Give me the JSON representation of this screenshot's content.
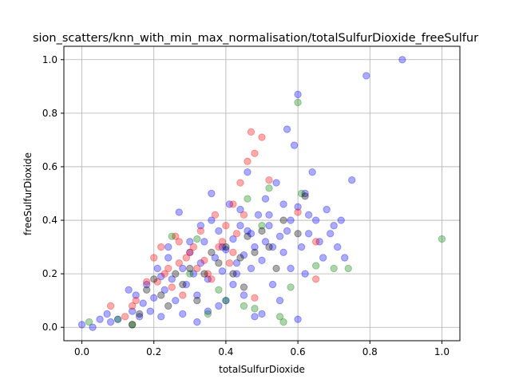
{
  "chart_data": {
    "type": "scatter",
    "title": "sion_scatters/knn_with_min_max_normalisation/totalSulfurDioxide_freeSulfur",
    "xlabel": "totalSulfurDioxide",
    "ylabel": "freeSulfurDioxide",
    "xlim": [
      -0.05,
      1.05
    ],
    "ylim": [
      -0.05,
      1.05
    ],
    "xticks": [
      "0.0",
      "0.2",
      "0.4",
      "0.6",
      "0.8",
      "1.0"
    ],
    "yticks": [
      "0.0",
      "0.2",
      "0.4",
      "0.6",
      "0.8",
      "1.0"
    ],
    "grid": true,
    "series": [
      {
        "color": "#0000ff",
        "points": [
          [
            0.0,
            0.01
          ],
          [
            0.03,
            0.0
          ],
          [
            0.05,
            0.03
          ],
          [
            0.07,
            0.05
          ],
          [
            0.08,
            0.02
          ],
          [
            0.1,
            0.03
          ],
          [
            0.13,
            0.14
          ],
          [
            0.15,
            0.12
          ],
          [
            0.17,
            0.09
          ],
          [
            0.18,
            0.16
          ],
          [
            0.2,
            0.11
          ],
          [
            0.21,
            0.22
          ],
          [
            0.22,
            0.19
          ],
          [
            0.23,
            0.14
          ],
          [
            0.24,
            0.26
          ],
          [
            0.25,
            0.18
          ],
          [
            0.26,
            0.1
          ],
          [
            0.27,
            0.43
          ],
          [
            0.28,
            0.22
          ],
          [
            0.29,
            0.16
          ],
          [
            0.3,
            0.28
          ],
          [
            0.31,
            0.2
          ],
          [
            0.32,
            0.12
          ],
          [
            0.33,
            0.24
          ],
          [
            0.34,
            0.32
          ],
          [
            0.35,
            0.18
          ],
          [
            0.36,
            0.5
          ],
          [
            0.37,
            0.26
          ],
          [
            0.38,
            0.36
          ],
          [
            0.39,
            0.21
          ],
          [
            0.4,
            0.29
          ],
          [
            0.41,
            0.46
          ],
          [
            0.42,
            0.33
          ],
          [
            0.43,
            0.2
          ],
          [
            0.44,
            0.38
          ],
          [
            0.45,
            0.27
          ],
          [
            0.46,
            0.58
          ],
          [
            0.47,
            0.35
          ],
          [
            0.48,
            0.3
          ],
          [
            0.49,
            0.42
          ],
          [
            0.5,
            0.25
          ],
          [
            0.51,
            0.48
          ],
          [
            0.52,
            0.38
          ],
          [
            0.53,
            0.3
          ],
          [
            0.54,
            0.54
          ],
          [
            0.55,
            0.34
          ],
          [
            0.56,
            0.28
          ],
          [
            0.57,
            0.74
          ],
          [
            0.58,
            0.4
          ],
          [
            0.59,
            0.68
          ],
          [
            0.6,
            0.45
          ],
          [
            0.61,
            0.3
          ],
          [
            0.62,
            0.5
          ],
          [
            0.63,
            0.35
          ],
          [
            0.64,
            0.58
          ],
          [
            0.65,
            0.4
          ],
          [
            0.66,
            0.32
          ],
          [
            0.68,
            0.44
          ],
          [
            0.7,
            0.38
          ],
          [
            0.72,
            0.4
          ],
          [
            0.75,
            0.55
          ],
          [
            0.6,
            0.87
          ],
          [
            0.79,
            0.94
          ],
          [
            0.89,
            1.0
          ],
          [
            0.45,
            0.12
          ],
          [
            0.5,
            0.05
          ],
          [
            0.55,
            0.1
          ],
          [
            0.6,
            0.03
          ],
          [
            0.35,
            0.06
          ],
          [
            0.32,
            0.02
          ],
          [
            0.28,
            0.05
          ],
          [
            0.4,
            0.1
          ],
          [
            0.42,
            0.16
          ],
          [
            0.38,
            0.08
          ],
          [
            0.47,
            0.22
          ],
          [
            0.53,
            0.16
          ],
          [
            0.58,
            0.22
          ],
          [
            0.62,
            0.2
          ],
          [
            0.67,
            0.26
          ],
          [
            0.73,
            0.26
          ],
          [
            0.48,
            0.04
          ],
          [
            0.22,
            0.04
          ],
          [
            0.19,
            0.06
          ],
          [
            0.16,
            0.04
          ],
          [
            0.14,
            0.06
          ],
          [
            0.3,
            0.32
          ],
          [
            0.36,
            0.4
          ],
          [
            0.44,
            0.44
          ],
          [
            0.52,
            0.42
          ],
          [
            0.56,
            0.46
          ],
          [
            0.24,
            0.3
          ],
          [
            0.33,
            0.38
          ],
          [
            0.43,
            0.24
          ],
          [
            0.39,
            0.3
          ],
          [
            0.46,
            0.36
          ],
          [
            0.51,
            0.32
          ],
          [
            0.57,
            0.36
          ],
          [
            0.63,
            0.42
          ],
          [
            0.69,
            0.35
          ],
          [
            0.71,
            0.3
          ]
        ]
      },
      {
        "color": "#ff0000",
        "points": [
          [
            0.08,
            0.08
          ],
          [
            0.15,
            0.1
          ],
          [
            0.18,
            0.17
          ],
          [
            0.2,
            0.26
          ],
          [
            0.22,
            0.3
          ],
          [
            0.23,
            0.2
          ],
          [
            0.25,
            0.15
          ],
          [
            0.26,
            0.34
          ],
          [
            0.27,
            0.24
          ],
          [
            0.28,
            0.12
          ],
          [
            0.3,
            0.28
          ],
          [
            0.32,
            0.22
          ],
          [
            0.33,
            0.36
          ],
          [
            0.35,
            0.2
          ],
          [
            0.37,
            0.42
          ],
          [
            0.38,
            0.3
          ],
          [
            0.4,
            0.38
          ],
          [
            0.41,
            0.24
          ],
          [
            0.42,
            0.46
          ],
          [
            0.43,
            0.35
          ],
          [
            0.44,
            0.54
          ],
          [
            0.45,
            0.42
          ],
          [
            0.46,
            0.62
          ],
          [
            0.47,
            0.73
          ],
          [
            0.48,
            0.65
          ],
          [
            0.5,
            0.71
          ],
          [
            0.52,
            0.55
          ],
          [
            0.48,
            0.11
          ],
          [
            0.36,
            0.18
          ],
          [
            0.24,
            0.22
          ],
          [
            0.21,
            0.17
          ],
          [
            0.29,
            0.26
          ],
          [
            0.31,
            0.3
          ],
          [
            0.34,
            0.25
          ],
          [
            0.39,
            0.32
          ],
          [
            0.12,
            0.04
          ],
          [
            0.14,
            0.08
          ],
          [
            0.27,
            0.32
          ],
          [
            0.42,
            0.28
          ],
          [
            0.65,
            0.32
          ],
          [
            0.65,
            0.18
          ],
          [
            0.6,
            0.43
          ]
        ]
      },
      {
        "color": "#008000",
        "points": [
          [
            0.02,
            0.02
          ],
          [
            0.1,
            0.03
          ],
          [
            0.14,
            0.01
          ],
          [
            0.25,
            0.34
          ],
          [
            0.32,
            0.33
          ],
          [
            0.35,
            0.05
          ],
          [
            0.4,
            0.1
          ],
          [
            0.45,
            0.08
          ],
          [
            0.48,
            0.07
          ],
          [
            0.52,
            0.52
          ],
          [
            0.55,
            0.04
          ],
          [
            0.56,
            0.02
          ],
          [
            0.58,
            0.15
          ],
          [
            0.6,
            0.84
          ],
          [
            0.61,
            0.5
          ],
          [
            0.65,
            0.23
          ],
          [
            0.7,
            0.22
          ],
          [
            0.74,
            0.22
          ],
          [
            1.0,
            0.33
          ],
          [
            0.3,
            0.2
          ],
          [
            0.38,
            0.14
          ],
          [
            0.5,
            0.38
          ],
          [
            0.46,
            0.48
          ]
        ]
      },
      {
        "color": "#000000",
        "points": [
          [
            0.14,
            0.01
          ],
          [
            0.18,
            0.14
          ],
          [
            0.2,
            0.18
          ],
          [
            0.22,
            0.12
          ],
          [
            0.26,
            0.2
          ],
          [
            0.28,
            0.16
          ],
          [
            0.3,
            0.22
          ],
          [
            0.32,
            0.1
          ],
          [
            0.34,
            0.2
          ],
          [
            0.36,
            0.28
          ],
          [
            0.38,
            0.24
          ],
          [
            0.4,
            0.3
          ],
          [
            0.42,
            0.2
          ],
          [
            0.44,
            0.26
          ],
          [
            0.46,
            0.34
          ],
          [
            0.48,
            0.28
          ],
          [
            0.5,
            0.36
          ],
          [
            0.52,
            0.3
          ],
          [
            0.54,
            0.22
          ],
          [
            0.56,
            0.4
          ],
          [
            0.6,
            0.35
          ],
          [
            0.62,
            0.49
          ],
          [
            0.16,
            0.05
          ],
          [
            0.24,
            0.08
          ],
          [
            0.45,
            0.15
          ]
        ]
      }
    ]
  }
}
